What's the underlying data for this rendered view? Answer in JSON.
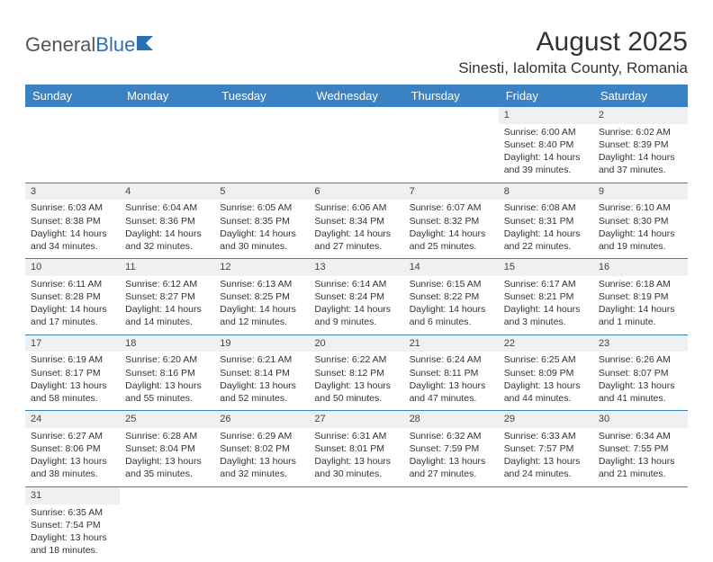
{
  "logo": {
    "text1": "General",
    "text2": "Blue"
  },
  "header": {
    "title": "August 2025",
    "location": "Sinesti, Ialomita County, Romania"
  },
  "colors": {
    "header_bg": "#3b82c4",
    "header_fg": "#ffffff",
    "grid_line": "#3b82c4",
    "daynum_bg": "#eef0f2",
    "logo_blue": "#2c6fb5"
  },
  "days_of_week": [
    "Sunday",
    "Monday",
    "Tuesday",
    "Wednesday",
    "Thursday",
    "Friday",
    "Saturday"
  ],
  "weeks": [
    [
      null,
      null,
      null,
      null,
      null,
      {
        "n": "1",
        "sr": "Sunrise: 6:00 AM",
        "ss": "Sunset: 8:40 PM",
        "dl": "Daylight: 14 hours and 39 minutes."
      },
      {
        "n": "2",
        "sr": "Sunrise: 6:02 AM",
        "ss": "Sunset: 8:39 PM",
        "dl": "Daylight: 14 hours and 37 minutes."
      }
    ],
    [
      {
        "n": "3",
        "sr": "Sunrise: 6:03 AM",
        "ss": "Sunset: 8:38 PM",
        "dl": "Daylight: 14 hours and 34 minutes."
      },
      {
        "n": "4",
        "sr": "Sunrise: 6:04 AM",
        "ss": "Sunset: 8:36 PM",
        "dl": "Daylight: 14 hours and 32 minutes."
      },
      {
        "n": "5",
        "sr": "Sunrise: 6:05 AM",
        "ss": "Sunset: 8:35 PM",
        "dl": "Daylight: 14 hours and 30 minutes."
      },
      {
        "n": "6",
        "sr": "Sunrise: 6:06 AM",
        "ss": "Sunset: 8:34 PM",
        "dl": "Daylight: 14 hours and 27 minutes."
      },
      {
        "n": "7",
        "sr": "Sunrise: 6:07 AM",
        "ss": "Sunset: 8:32 PM",
        "dl": "Daylight: 14 hours and 25 minutes."
      },
      {
        "n": "8",
        "sr": "Sunrise: 6:08 AM",
        "ss": "Sunset: 8:31 PM",
        "dl": "Daylight: 14 hours and 22 minutes."
      },
      {
        "n": "9",
        "sr": "Sunrise: 6:10 AM",
        "ss": "Sunset: 8:30 PM",
        "dl": "Daylight: 14 hours and 19 minutes."
      }
    ],
    [
      {
        "n": "10",
        "sr": "Sunrise: 6:11 AM",
        "ss": "Sunset: 8:28 PM",
        "dl": "Daylight: 14 hours and 17 minutes."
      },
      {
        "n": "11",
        "sr": "Sunrise: 6:12 AM",
        "ss": "Sunset: 8:27 PM",
        "dl": "Daylight: 14 hours and 14 minutes."
      },
      {
        "n": "12",
        "sr": "Sunrise: 6:13 AM",
        "ss": "Sunset: 8:25 PM",
        "dl": "Daylight: 14 hours and 12 minutes."
      },
      {
        "n": "13",
        "sr": "Sunrise: 6:14 AM",
        "ss": "Sunset: 8:24 PM",
        "dl": "Daylight: 14 hours and 9 minutes."
      },
      {
        "n": "14",
        "sr": "Sunrise: 6:15 AM",
        "ss": "Sunset: 8:22 PM",
        "dl": "Daylight: 14 hours and 6 minutes."
      },
      {
        "n": "15",
        "sr": "Sunrise: 6:17 AM",
        "ss": "Sunset: 8:21 PM",
        "dl": "Daylight: 14 hours and 3 minutes."
      },
      {
        "n": "16",
        "sr": "Sunrise: 6:18 AM",
        "ss": "Sunset: 8:19 PM",
        "dl": "Daylight: 14 hours and 1 minute."
      }
    ],
    [
      {
        "n": "17",
        "sr": "Sunrise: 6:19 AM",
        "ss": "Sunset: 8:17 PM",
        "dl": "Daylight: 13 hours and 58 minutes."
      },
      {
        "n": "18",
        "sr": "Sunrise: 6:20 AM",
        "ss": "Sunset: 8:16 PM",
        "dl": "Daylight: 13 hours and 55 minutes."
      },
      {
        "n": "19",
        "sr": "Sunrise: 6:21 AM",
        "ss": "Sunset: 8:14 PM",
        "dl": "Daylight: 13 hours and 52 minutes."
      },
      {
        "n": "20",
        "sr": "Sunrise: 6:22 AM",
        "ss": "Sunset: 8:12 PM",
        "dl": "Daylight: 13 hours and 50 minutes."
      },
      {
        "n": "21",
        "sr": "Sunrise: 6:24 AM",
        "ss": "Sunset: 8:11 PM",
        "dl": "Daylight: 13 hours and 47 minutes."
      },
      {
        "n": "22",
        "sr": "Sunrise: 6:25 AM",
        "ss": "Sunset: 8:09 PM",
        "dl": "Daylight: 13 hours and 44 minutes."
      },
      {
        "n": "23",
        "sr": "Sunrise: 6:26 AM",
        "ss": "Sunset: 8:07 PM",
        "dl": "Daylight: 13 hours and 41 minutes."
      }
    ],
    [
      {
        "n": "24",
        "sr": "Sunrise: 6:27 AM",
        "ss": "Sunset: 8:06 PM",
        "dl": "Daylight: 13 hours and 38 minutes."
      },
      {
        "n": "25",
        "sr": "Sunrise: 6:28 AM",
        "ss": "Sunset: 8:04 PM",
        "dl": "Daylight: 13 hours and 35 minutes."
      },
      {
        "n": "26",
        "sr": "Sunrise: 6:29 AM",
        "ss": "Sunset: 8:02 PM",
        "dl": "Daylight: 13 hours and 32 minutes."
      },
      {
        "n": "27",
        "sr": "Sunrise: 6:31 AM",
        "ss": "Sunset: 8:01 PM",
        "dl": "Daylight: 13 hours and 30 minutes."
      },
      {
        "n": "28",
        "sr": "Sunrise: 6:32 AM",
        "ss": "Sunset: 7:59 PM",
        "dl": "Daylight: 13 hours and 27 minutes."
      },
      {
        "n": "29",
        "sr": "Sunrise: 6:33 AM",
        "ss": "Sunset: 7:57 PM",
        "dl": "Daylight: 13 hours and 24 minutes."
      },
      {
        "n": "30",
        "sr": "Sunrise: 6:34 AM",
        "ss": "Sunset: 7:55 PM",
        "dl": "Daylight: 13 hours and 21 minutes."
      }
    ],
    [
      {
        "n": "31",
        "sr": "Sunrise: 6:35 AM",
        "ss": "Sunset: 7:54 PM",
        "dl": "Daylight: 13 hours and 18 minutes."
      },
      null,
      null,
      null,
      null,
      null,
      null
    ]
  ]
}
